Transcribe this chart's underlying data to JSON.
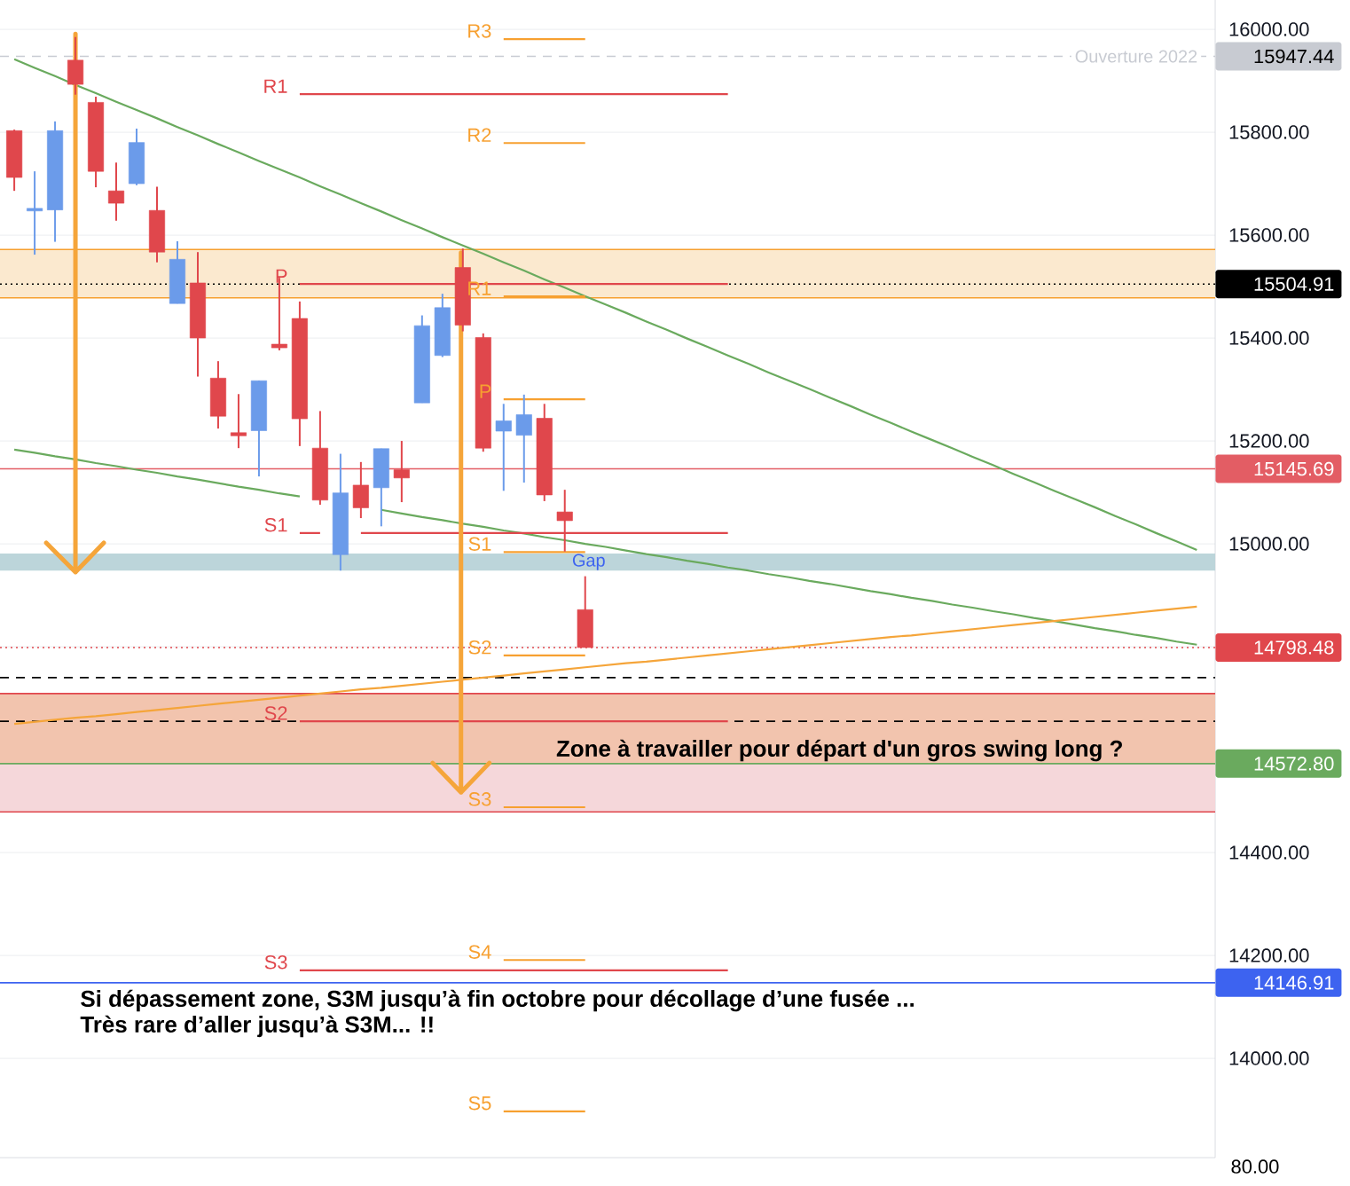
{
  "chart_data": {
    "type": "candlestick",
    "categories": [
      null,
      null,
      null,
      null,
      null,
      null,
      null,
      null,
      null,
      null,
      null,
      null,
      null,
      null,
      null,
      null,
      null,
      null,
      null,
      null,
      null,
      null,
      null,
      null,
      null,
      null,
      null,
      null,
      null,
      null,
      null,
      null,
      null,
      null,
      null,
      null,
      null,
      null,
      null,
      null,
      null,
      null,
      null,
      null,
      null,
      null,
      null,
      null,
      null,
      null,
      null,
      null,
      null,
      null,
      null,
      null,
      null,
      null,
      null
    ],
    "ohlc": [
      [
        15803,
        15805,
        15686,
        15712
      ],
      [
        15647,
        15724,
        15562,
        15652
      ],
      [
        15649,
        15821,
        15587,
        15803
      ],
      [
        15940,
        15985,
        15873,
        15893
      ],
      [
        15858,
        15869,
        15693,
        15724
      ],
      [
        15686,
        15741,
        15628,
        15662
      ],
      [
        15700,
        15807,
        15697,
        15780
      ],
      [
        15648,
        15694,
        15547,
        15567
      ],
      [
        15467,
        15588,
        15467,
        15553
      ],
      [
        15507,
        15567,
        15325,
        15400
      ],
      [
        15322,
        15355,
        15224,
        15248
      ],
      [
        15216,
        15291,
        15186,
        15210
      ],
      [
        15220,
        15317,
        15131,
        15317
      ],
      [
        15388,
        15517,
        15376,
        15381
      ],
      [
        15438,
        15471,
        15190,
        15243
      ],
      [
        15186,
        15258,
        15076,
        15085
      ],
      [
        14979,
        15175,
        14948,
        15099
      ],
      [
        15114,
        15159,
        15050,
        15070
      ],
      [
        15109,
        15185,
        15034,
        15185
      ],
      [
        15144,
        15200,
        15081,
        15128
      ],
      [
        15274,
        15444,
        15274,
        15424
      ],
      [
        15366,
        15486,
        15363,
        15459
      ],
      [
        15537,
        15574,
        15413,
        15425
      ],
      [
        15401,
        15409,
        15179,
        15186
      ],
      [
        15219,
        15272,
        15103,
        15239
      ],
      [
        15211,
        15290,
        15119,
        15251
      ],
      [
        15244,
        15272,
        15083,
        15095
      ],
      [
        15062,
        15105,
        14985,
        15045
      ],
      [
        14872,
        14937,
        14798.48,
        14798.48
      ],
      null,
      null,
      null,
      null,
      null,
      null,
      null,
      null,
      null,
      null,
      null,
      null,
      null,
      null,
      null,
      null,
      null,
      null,
      null,
      null,
      null,
      null,
      null,
      null,
      null,
      null,
      null,
      null,
      null,
      null
    ],
    "colors": [
      "#e0474c",
      "#6b9bea",
      "#6b9bea",
      "#e0474c",
      "#e0474c",
      "#e0474c",
      "#6b9bea",
      "#e0474c",
      "#6b9bea",
      "#e0474c",
      "#e0474c",
      "#e0474c",
      "#6b9bea",
      "#e0474c",
      "#e0474c",
      "#e0474c",
      "#6b9bea",
      "#e0474c",
      "#6b9bea",
      "#e0474c",
      "#6b9bea",
      "#6b9bea",
      "#e0474c",
      "#e0474c",
      "#6b9bea",
      "#6b9bea",
      "#e0474c",
      "#e0474c",
      "#e0474c",
      null,
      null,
      null,
      null,
      null,
      null,
      null,
      null,
      null,
      null,
      null,
      null,
      null,
      null,
      null,
      null,
      null,
      null,
      null,
      null,
      null,
      null,
      null,
      null,
      null,
      null,
      null,
      null,
      null,
      null
    ],
    "series": [
      {
        "type": "line",
        "color": "#6aaa5e",
        "values": [
          15942,
          15925,
          15909,
          15892,
          15876,
          15859,
          15843,
          15827,
          15810,
          15794,
          15777,
          15761,
          15744,
          15728,
          15712,
          15695,
          15679,
          15662,
          15646,
          15629,
          15613,
          15596,
          15580,
          15564,
          15547,
          15531,
          15514,
          15498,
          15481,
          15465,
          15449,
          15432,
          15416,
          15399,
          15383,
          15366,
          15350,
          15333,
          15317,
          15301,
          15284,
          15268,
          15251,
          15235,
          15218,
          15202,
          15186,
          15169,
          15153,
          15136,
          15120,
          15103,
          15087,
          15071,
          15054,
          15038,
          15021,
          15005,
          14988
        ]
      },
      {
        "type": "line",
        "color": "#6aaa5e",
        "values": [
          15183,
          15177,
          15170,
          15164,
          15157,
          15151,
          15144,
          15138,
          15131,
          15125,
          15118,
          15111,
          15105,
          15098,
          15092,
          null,
          null,
          null,
          15066,
          15059,
          15052,
          15046,
          15039,
          15033,
          15026,
          15020,
          15013,
          15007,
          15000,
          14994,
          14987,
          14980,
          14974,
          14967,
          14961,
          14954,
          14948,
          14941,
          14935,
          14928,
          14922,
          14915,
          14908,
          14902,
          14895,
          14889,
          14882,
          14876,
          14869,
          14863,
          14856,
          14850,
          14843,
          14836,
          14830,
          14823,
          14817,
          14810,
          14804
        ]
      },
      {
        "type": "line",
        "color": "#f5a53a",
        "values": [
          14650,
          14654,
          14658,
          14662,
          14665,
          14669,
          14673,
          14677,
          14681,
          14685,
          14689,
          14693,
          14697,
          14701,
          14705,
          14709,
          14713,
          14717,
          14720,
          14724,
          14728,
          14732,
          14736,
          14740,
          14744,
          14748,
          14752,
          14756,
          14760,
          14764,
          14768,
          14771,
          14775,
          14779,
          14783,
          14787,
          14791,
          14795,
          14799,
          14803,
          14807,
          14811,
          14815,
          14819,
          14822,
          14826,
          14830,
          14834,
          14838,
          14842,
          14846,
          14850,
          14854,
          14858,
          14862,
          14866,
          14870,
          14874,
          14878
        ]
      },
      {
        "type": "line",
        "name": "R1",
        "color": "#e0474c",
        "values": [
          null,
          null,
          null,
          null,
          null,
          null,
          null,
          null,
          null,
          null,
          null,
          null,
          null,
          null,
          15874,
          15874,
          15874,
          15874,
          15874,
          15874,
          15874,
          15874,
          15874,
          15874,
          15874,
          15874,
          15874,
          15874,
          15874,
          15874,
          15874,
          15874,
          15874,
          15874,
          15874,
          15874,
          null,
          null,
          null,
          null,
          null,
          null,
          null,
          null,
          null,
          null,
          null,
          null,
          null,
          null,
          null,
          null,
          null,
          null,
          null,
          null,
          null,
          null,
          null
        ]
      },
      {
        "type": "line",
        "name": "P",
        "color": "#e0474c",
        "values": [
          null,
          null,
          null,
          null,
          null,
          null,
          null,
          null,
          null,
          null,
          null,
          null,
          null,
          null,
          15505,
          15505,
          15505,
          15505,
          15505,
          15505,
          15505,
          15505,
          15505,
          15505,
          15505,
          15505,
          15505,
          15505,
          15505,
          15505,
          15505,
          15505,
          15505,
          15505,
          15505,
          15505,
          null,
          null,
          null,
          null,
          null,
          null,
          null,
          null,
          null,
          null,
          null,
          null,
          null,
          null,
          null,
          null,
          null,
          null,
          null,
          null,
          null,
          null,
          null
        ]
      },
      {
        "type": "line",
        "name": "S1",
        "color": "#e0474c",
        "values": [
          null,
          null,
          null,
          null,
          null,
          null,
          null,
          null,
          null,
          null,
          null,
          null,
          null,
          null,
          15021,
          15021,
          null,
          15021,
          15021,
          15021,
          15021,
          15021,
          15021,
          15021,
          15021,
          15021,
          15021,
          15021,
          15021,
          15021,
          15021,
          15021,
          15021,
          15021,
          15021,
          15021,
          null,
          null,
          null,
          null,
          null,
          null,
          null,
          null,
          null,
          null,
          null,
          null,
          null,
          null,
          null,
          null,
          null,
          null,
          null,
          null,
          null,
          null,
          null
        ]
      },
      {
        "type": "line",
        "name": "S2",
        "color": "#e0474c",
        "values": [
          null,
          null,
          null,
          null,
          null,
          null,
          null,
          null,
          null,
          null,
          null,
          null,
          null,
          null,
          14655,
          14655,
          14655,
          14655,
          14655,
          14655,
          14655,
          14655,
          14655,
          14655,
          14655,
          14655,
          14655,
          14655,
          14655,
          14655,
          14655,
          14655,
          14655,
          14655,
          14655,
          14655,
          null,
          null,
          null,
          null,
          null,
          null,
          null,
          null,
          null,
          null,
          null,
          null,
          null,
          null,
          null,
          null,
          null,
          null,
          null,
          null,
          null,
          null,
          null
        ]
      },
      {
        "type": "line",
        "name": "S3",
        "color": "#e0474c",
        "values": [
          null,
          null,
          null,
          null,
          null,
          null,
          null,
          null,
          null,
          null,
          null,
          null,
          null,
          null,
          14171,
          14171,
          14171,
          14171,
          14171,
          14171,
          14171,
          14171,
          14171,
          14171,
          14171,
          14171,
          14171,
          14171,
          14171,
          14171,
          14171,
          14171,
          14171,
          14171,
          14171,
          14171,
          null,
          null,
          null,
          null,
          null,
          null,
          null,
          null,
          null,
          null,
          null,
          null,
          null,
          null,
          null,
          null,
          null,
          null,
          null,
          null,
          null,
          null,
          null
        ]
      },
      {
        "type": "line",
        "name": "R3",
        "color": "#f7a030",
        "values": [
          null,
          null,
          null,
          null,
          null,
          null,
          null,
          null,
          null,
          null,
          null,
          null,
          null,
          null,
          null,
          null,
          null,
          null,
          null,
          null,
          null,
          null,
          null,
          null,
          15981,
          15981,
          15981,
          15981,
          15981,
          null,
          null,
          null,
          null,
          null,
          null,
          null,
          null,
          null,
          null,
          null,
          null,
          null,
          null,
          null,
          null,
          null,
          null,
          null,
          null,
          null,
          null,
          null,
          null,
          null,
          null,
          null,
          null,
          null,
          null
        ]
      },
      {
        "type": "line",
        "name": "R2",
        "color": "#f7a030",
        "values": [
          null,
          null,
          null,
          null,
          null,
          null,
          null,
          null,
          null,
          null,
          null,
          null,
          null,
          null,
          null,
          null,
          null,
          null,
          null,
          null,
          null,
          null,
          null,
          null,
          15779,
          15779,
          15779,
          15779,
          15779,
          null,
          null,
          null,
          null,
          null,
          null,
          null,
          null,
          null,
          null,
          null,
          null,
          null,
          null,
          null,
          null,
          null,
          null,
          null,
          null,
          null,
          null,
          null,
          null,
          null,
          null,
          null,
          null,
          null,
          null
        ]
      },
      {
        "type": "line",
        "name": "R1",
        "color": "#f7a030",
        "values": [
          null,
          null,
          null,
          null,
          null,
          null,
          null,
          null,
          null,
          null,
          null,
          null,
          null,
          null,
          null,
          null,
          null,
          null,
          null,
          null,
          null,
          null,
          null,
          null,
          15481,
          15481,
          15481,
          15481,
          15481,
          null,
          null,
          null,
          null,
          null,
          null,
          null,
          null,
          null,
          null,
          null,
          null,
          null,
          null,
          null,
          null,
          null,
          null,
          null,
          null,
          null,
          null,
          null,
          null,
          null,
          null,
          null,
          null,
          null,
          null
        ]
      },
      {
        "type": "line",
        "name": "P",
        "color": "#f7a030",
        "values": [
          null,
          null,
          null,
          null,
          null,
          null,
          null,
          null,
          null,
          null,
          null,
          null,
          null,
          null,
          null,
          null,
          null,
          null,
          null,
          null,
          null,
          null,
          null,
          null,
          15281,
          15281,
          15281,
          15281,
          15281,
          null,
          null,
          null,
          null,
          null,
          null,
          null,
          null,
          null,
          null,
          null,
          null,
          null,
          null,
          null,
          null,
          null,
          null,
          null,
          null,
          null,
          null,
          null,
          null,
          null,
          null,
          null,
          null,
          null,
          null
        ]
      },
      {
        "type": "line",
        "name": "S1",
        "color": "#f7a030",
        "values": [
          null,
          null,
          null,
          null,
          null,
          null,
          null,
          null,
          null,
          null,
          null,
          null,
          null,
          null,
          null,
          null,
          null,
          null,
          null,
          null,
          null,
          null,
          null,
          null,
          14984,
          14984,
          14984,
          14984,
          14984,
          null,
          null,
          null,
          null,
          null,
          null,
          null,
          null,
          null,
          null,
          null,
          null,
          null,
          null,
          null,
          null,
          null,
          null,
          null,
          null,
          null,
          null,
          null,
          null,
          null,
          null,
          null,
          null,
          null,
          null
        ]
      },
      {
        "type": "line",
        "name": "S2",
        "color": "#f7a030",
        "values": [
          null,
          null,
          null,
          null,
          null,
          null,
          null,
          null,
          null,
          null,
          null,
          null,
          null,
          null,
          null,
          null,
          null,
          null,
          null,
          null,
          null,
          null,
          null,
          null,
          14783,
          14783,
          14783,
          14783,
          14783,
          null,
          null,
          null,
          null,
          null,
          null,
          null,
          null,
          null,
          null,
          null,
          null,
          null,
          null,
          null,
          null,
          null,
          null,
          null,
          null,
          null,
          null,
          null,
          null,
          null,
          null,
          null,
          null,
          null,
          null
        ]
      },
      {
        "type": "line",
        "name": "S3",
        "color": "#f7a030",
        "values": [
          null,
          null,
          null,
          null,
          null,
          null,
          null,
          null,
          null,
          null,
          null,
          null,
          null,
          null,
          null,
          null,
          null,
          null,
          null,
          null,
          null,
          null,
          null,
          null,
          14488,
          14488,
          14488,
          14488,
          14488,
          null,
          null,
          null,
          null,
          null,
          null,
          null,
          null,
          null,
          null,
          null,
          null,
          null,
          null,
          null,
          null,
          null,
          null,
          null,
          null,
          null,
          null,
          null,
          null,
          null,
          null,
          null,
          null,
          null,
          null
        ]
      },
      {
        "type": "line",
        "name": "S4",
        "color": "#f7a030",
        "values": [
          null,
          null,
          null,
          null,
          null,
          null,
          null,
          null,
          null,
          null,
          null,
          null,
          null,
          null,
          null,
          null,
          null,
          null,
          null,
          null,
          null,
          null,
          null,
          null,
          14191,
          14191,
          14191,
          14191,
          14191,
          null,
          null,
          null,
          null,
          null,
          null,
          null,
          null,
          null,
          null,
          null,
          null,
          null,
          null,
          null,
          null,
          null,
          null,
          null,
          null,
          null,
          null,
          null,
          null,
          null,
          null,
          null,
          null,
          null,
          null
        ]
      },
      {
        "type": "line",
        "name": "S5",
        "color": "#f7a030",
        "values": [
          null,
          null,
          null,
          null,
          null,
          null,
          null,
          null,
          null,
          null,
          null,
          null,
          null,
          null,
          null,
          null,
          null,
          null,
          null,
          null,
          null,
          null,
          null,
          null,
          13897,
          13897,
          13897,
          13897,
          13897,
          null,
          null,
          null,
          null,
          null,
          null,
          null,
          null,
          null,
          null,
          null,
          null,
          null,
          null,
          null,
          null,
          null,
          null,
          null,
          null,
          null,
          null,
          null,
          null,
          null,
          null,
          null,
          null,
          null,
          null
        ]
      }
    ],
    "bands": [
      {
        "axis": "y",
        "from": 15478,
        "to": 15572,
        "color": "#fbe9cf"
      },
      {
        "axis": "y",
        "from": 14948,
        "to": 14981,
        "label": "Gap",
        "color": "#bcd5da"
      },
      {
        "axis": "y",
        "from": 14573,
        "to": 14709,
        "label": "Zone à travailler pour départ d'un gros swing long ?",
        "color": "#f2c4ae"
      },
      {
        "axis": "y",
        "from": 14479,
        "to": 14573,
        "color": "#f5d7da"
      }
    ],
    "ref_lines": [
      {
        "axis": "y",
        "value": 15947.44,
        "label": "15947.44",
        "color": "#c8cbd2",
        "line_style": "dashed"
      },
      {
        "axis": "y",
        "value": 15504.91,
        "label": "15504.91",
        "color": "#000000",
        "line_style": "dotted"
      },
      {
        "axis": "y",
        "value": 15145.69,
        "label": "15145.69",
        "color": "#e35d64",
        "line_style": "solid"
      },
      {
        "axis": "y",
        "value": 14798.48,
        "label": "14798.48",
        "color": "#e0474c",
        "line_style": "dotted"
      },
      {
        "axis": "y",
        "value": 14572.8,
        "label": "14572.80",
        "color": "#6aaa5e",
        "line_style": "solid"
      },
      {
        "axis": "y",
        "value": 14146.91,
        "label": "14146.91",
        "color": "#3d63f0",
        "line_style": "solid"
      },
      {
        "axis": "y",
        "value": 14740,
        "color": "#000000",
        "line_style": "dashed"
      },
      {
        "axis": "y",
        "value": 14655,
        "color": "#000000",
        "line_style": "dashed"
      },
      {
        "axis": "y",
        "value": 15572,
        "color": "#f7a030",
        "line_style": "solid"
      },
      {
        "axis": "y",
        "value": 15478,
        "color": "#f7a030",
        "line_style": "solid"
      },
      {
        "axis": "y",
        "value": 14709,
        "color": "#e0474c",
        "line_style": "solid"
      },
      {
        "axis": "y",
        "value": 14479,
        "color": "#e0474c",
        "line_style": "solid"
      }
    ],
    "annotations": [
      {
        "text": "Ouverture 2022",
        "y": 15947.44
      },
      "Si dépassement zone, S3M jusqu’à fin octobre pour décollage d’une fusée ...",
      "Très rare d’aller jusqu’à S3M... !!",
      "80.00"
    ],
    "ylim": [
      13807,
      16057
    ],
    "yticks": [
      {
        "value": 14000,
        "label": "14000.00"
      },
      {
        "value": 14200,
        "label": "14200.00"
      },
      {
        "value": 14400,
        "label": "14400.00"
      },
      {
        "value": 14600,
        "label": null
      },
      {
        "value": 14800,
        "label": null
      },
      {
        "value": 15000,
        "label": "15000.00"
      },
      {
        "value": 15200,
        "label": "15200.00"
      },
      {
        "value": 15400,
        "label": "15400.00"
      },
      {
        "value": 15600,
        "label": "15600.00"
      },
      {
        "value": 15800,
        "label": "15800.00"
      },
      {
        "value": 16000,
        "label": "16000.00"
      }
    ],
    "grid": "y",
    "tick_labels": "y"
  }
}
